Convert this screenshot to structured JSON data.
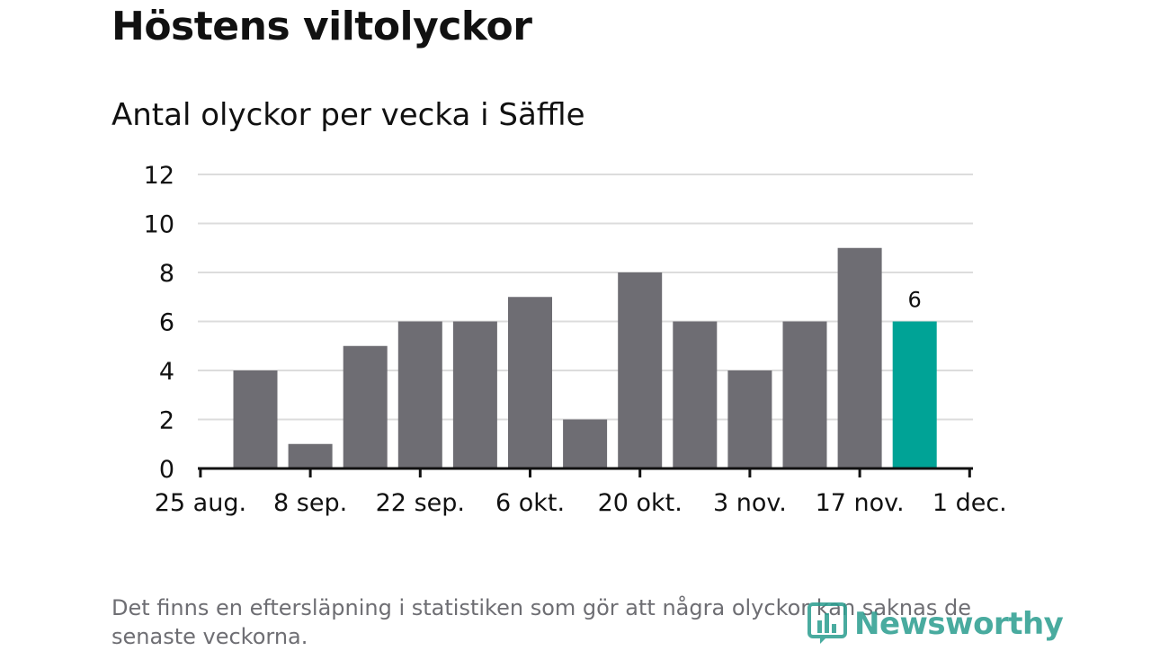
{
  "title": "Höstens viltolyckor",
  "subtitle": "Antal olyckor per vecka i Säffle",
  "footnote": "Det finns en eftersläpning i statistiken som gör att några olyckor kan saknas de senaste veckorna.",
  "logo": {
    "text": "Newsworthy",
    "icon": "newsworthy-bar-chart-icon"
  },
  "colors": {
    "bar": "#6e6d73",
    "highlight": "#00a396",
    "grid": "#dcdcdc",
    "axis": "#111111"
  },
  "chart_data": {
    "type": "bar",
    "title": "Antal olyckor per vecka i Säffle",
    "xlabel": "",
    "ylabel": "",
    "ylim": [
      0,
      12
    ],
    "yticks": [
      "0",
      "2",
      "4",
      "6",
      "8",
      "10",
      "12"
    ],
    "xticks": [
      "25 aug.",
      "8 sep.",
      "22 sep.",
      "6 okt.",
      "20 okt.",
      "3 nov.",
      "17 nov.",
      "1 dec."
    ],
    "grid": true,
    "values": [
      4,
      1,
      5,
      6,
      6,
      7,
      2,
      8,
      6,
      4,
      6,
      9,
      6
    ],
    "highlight_index": 12,
    "highlight_label": "6"
  }
}
